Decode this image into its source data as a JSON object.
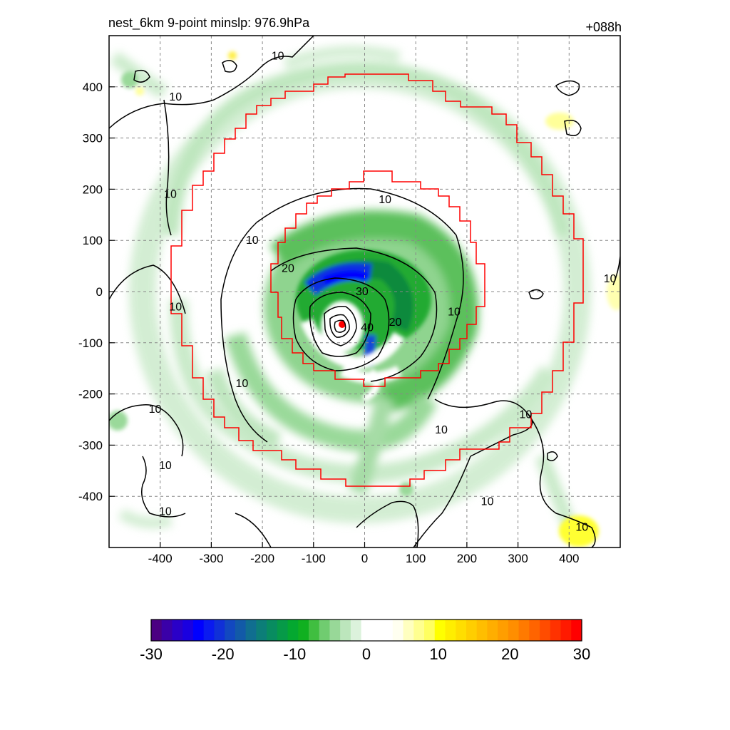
{
  "chart_data": {
    "type": "heatmap",
    "title_left": "nest_6km  9-point minslp: 976.9hPa",
    "title_right": "+088h",
    "xlim": [
      -500,
      500
    ],
    "ylim": [
      -500,
      500
    ],
    "x_ticks": [
      -400,
      -300,
      -200,
      -100,
      0,
      100,
      200,
      300,
      400
    ],
    "y_ticks": [
      400,
      300,
      200,
      100,
      0,
      -100,
      -200,
      -300,
      -400
    ],
    "grid": true,
    "colorbar": {
      "min": -30,
      "max": 30,
      "ticks": [
        -30,
        -20,
        -10,
        0,
        10,
        20,
        30
      ],
      "colors": [
        "#4b0082",
        "#3a00a8",
        "#2a00c8",
        "#1a00e0",
        "#0000ff",
        "#0a1af0",
        "#1030d8",
        "#1248c0",
        "#125aa8",
        "#106e90",
        "#0c7e78",
        "#088c60",
        "#069a48",
        "#04a830",
        "#10b020",
        "#40be40",
        "#70cc70",
        "#98d898",
        "#bce6bc",
        "#dcf2dc",
        "#ffffff",
        "#ffffff",
        "#ffffff",
        "#fffff0",
        "#ffffc0",
        "#ffff90",
        "#ffff60",
        "#ffff00",
        "#ffee00",
        "#ffde00",
        "#ffce00",
        "#ffbe00",
        "#ffae00",
        "#ff9e00",
        "#ff8e00",
        "#ff7a00",
        "#ff6400",
        "#ff4c00",
        "#ff3200",
        "#ff1a00",
        "#ff0000"
      ]
    },
    "contour_labels": [
      {
        "text": "10",
        "x": -170,
        "y": 460
      },
      {
        "text": "10",
        "x": -370,
        "y": 380
      },
      {
        "text": "10",
        "x": -380,
        "y": 190
      },
      {
        "text": "10",
        "x": -220,
        "y": 100
      },
      {
        "text": "10",
        "x": 40,
        "y": 180
      },
      {
        "text": "20",
        "x": -150,
        "y": 45
      },
      {
        "text": "30",
        "x": -5,
        "y": 0
      },
      {
        "text": "10",
        "x": -370,
        "y": -30
      },
      {
        "text": "10",
        "x": 175,
        "y": -40
      },
      {
        "text": "20",
        "x": 60,
        "y": -60
      },
      {
        "text": "40",
        "x": 5,
        "y": -70
      },
      {
        "text": "10",
        "x": -240,
        "y": -180
      },
      {
        "text": "10",
        "x": -410,
        "y": -230
      },
      {
        "text": "10",
        "x": 150,
        "y": -270
      },
      {
        "text": "10",
        "x": 315,
        "y": -240
      },
      {
        "text": "10",
        "x": -390,
        "y": -340
      },
      {
        "text": "10",
        "x": -390,
        "y": -430
      },
      {
        "text": "10",
        "x": 240,
        "y": -410
      },
      {
        "text": "10",
        "x": 425,
        "y": -460
      },
      {
        "text": "10",
        "x": 480,
        "y": 25
      }
    ],
    "center": {
      "x": -45,
      "y": -65
    }
  }
}
